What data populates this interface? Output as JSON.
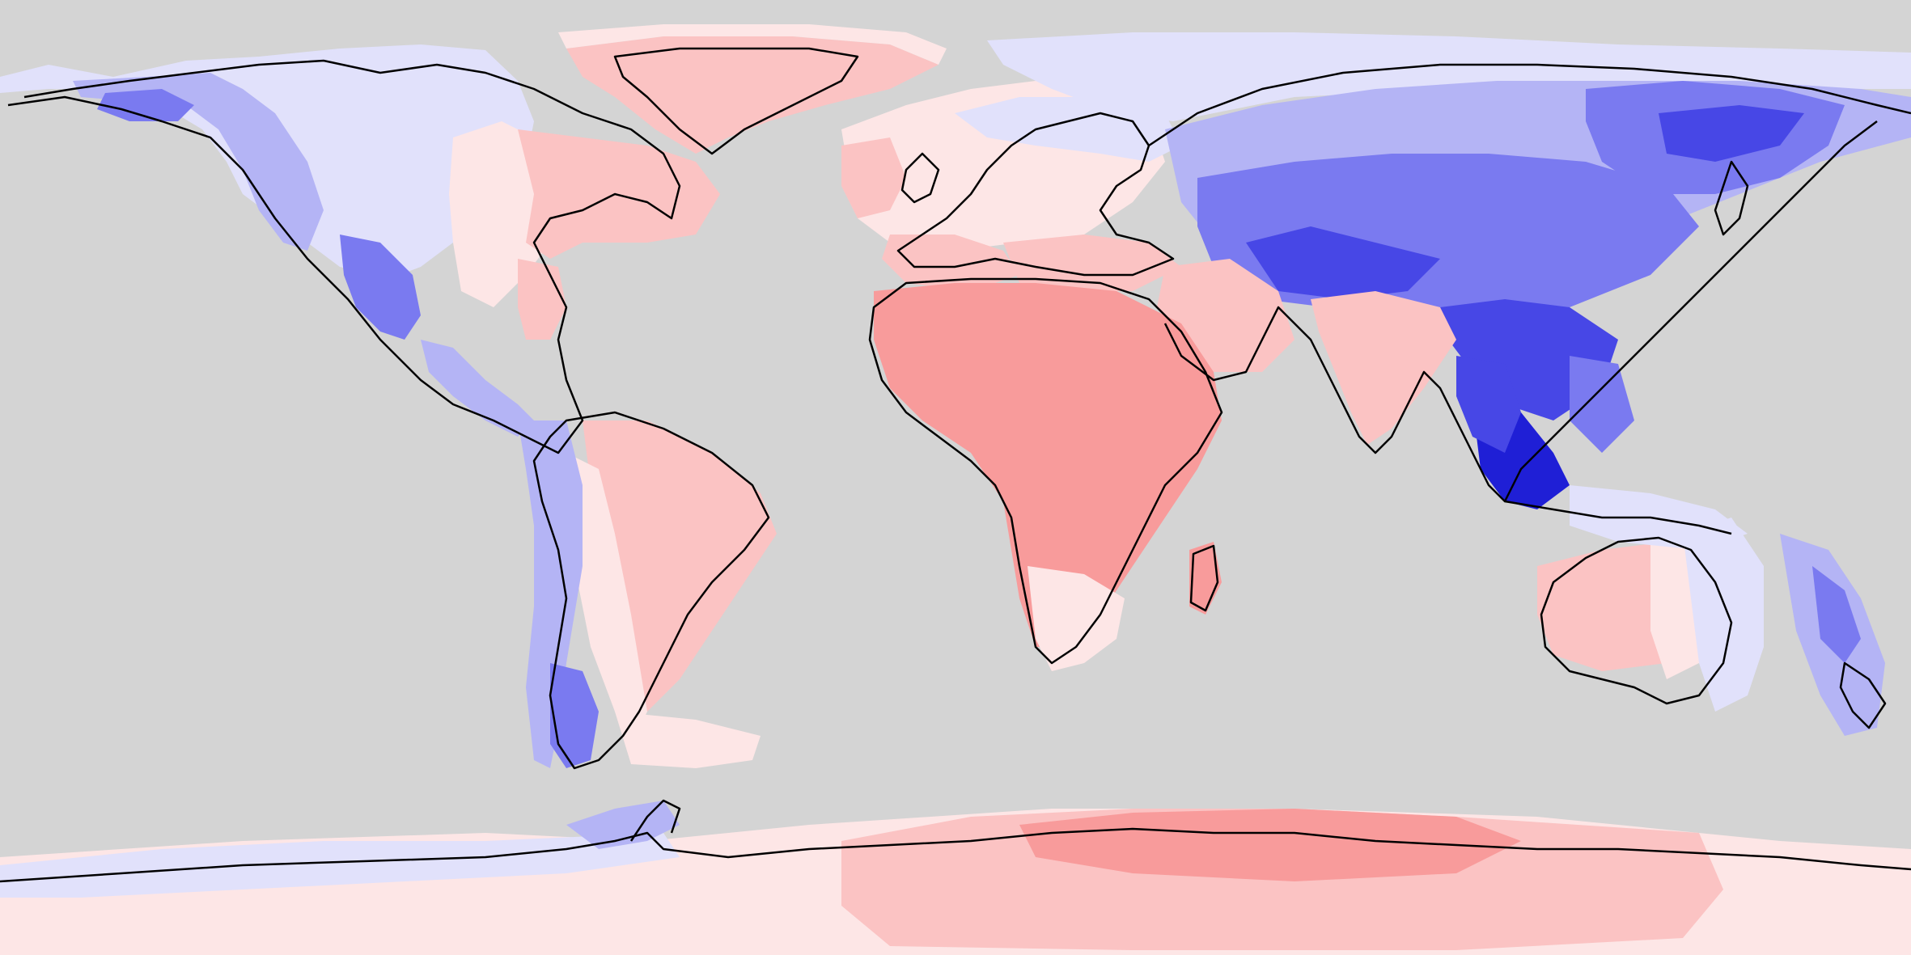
{
  "map": {
    "projection": "equirectangular",
    "background_color": "#d4d4d4",
    "coastline_color": "#000000",
    "palette": {
      "blue_darkest": "#1f1fd6",
      "blue_dark": "#4747e6",
      "blue_mid": "#7a7af0",
      "blue_light": "#b4b4f5",
      "blue_pale": "#e1e1fb",
      "red_pale": "#fde6e6",
      "red_light": "#fbc3c3",
      "red_mid": "#f89b9b"
    }
  }
}
